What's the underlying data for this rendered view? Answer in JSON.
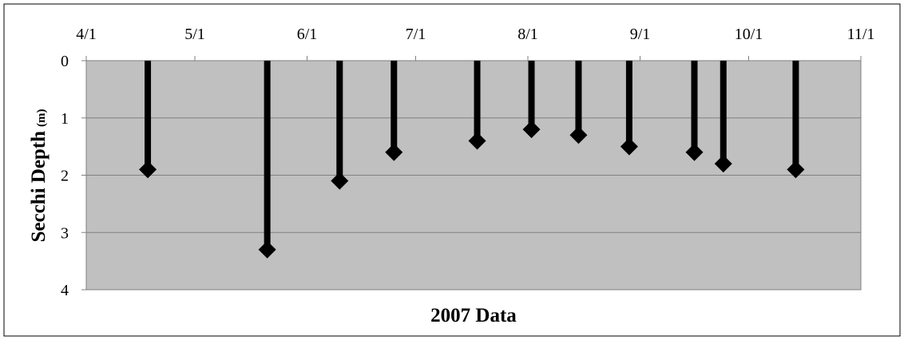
{
  "chart_data": {
    "type": "scatter",
    "title": "",
    "xlabel": "2007 Data",
    "ylabel": "Secchi Depth",
    "ylabel_unit": "(m)",
    "x_ticks": [
      "4/1",
      "5/1",
      "6/1",
      "7/1",
      "8/1",
      "9/1",
      "10/1",
      "11/1"
    ],
    "x_range": [
      "2007-04-01",
      "2007-11-01"
    ],
    "y_ticks": [
      0,
      1,
      2,
      3,
      4
    ],
    "ylim": [
      0,
      4
    ],
    "y_inverted": true,
    "grid": "horizontal",
    "marker": "diamond",
    "drop_lines": true,
    "series": [
      {
        "points": [
          {
            "date": "2007-04-18",
            "depth": 1.9
          },
          {
            "date": "2007-05-21",
            "depth": 3.3
          },
          {
            "date": "2007-06-10",
            "depth": 2.1
          },
          {
            "date": "2007-06-25",
            "depth": 1.6
          },
          {
            "date": "2007-07-18",
            "depth": 1.4
          },
          {
            "date": "2007-08-02",
            "depth": 1.2
          },
          {
            "date": "2007-08-15",
            "depth": 1.3
          },
          {
            "date": "2007-08-29",
            "depth": 1.5
          },
          {
            "date": "2007-09-16",
            "depth": 1.6
          },
          {
            "date": "2007-09-24",
            "depth": 1.8
          },
          {
            "date": "2007-10-14",
            "depth": 1.9
          }
        ]
      }
    ],
    "colors": {
      "plot_background": "#c0c0c0",
      "marker": "#000000",
      "drop_line": "#000000",
      "gridline": "#808080"
    }
  }
}
